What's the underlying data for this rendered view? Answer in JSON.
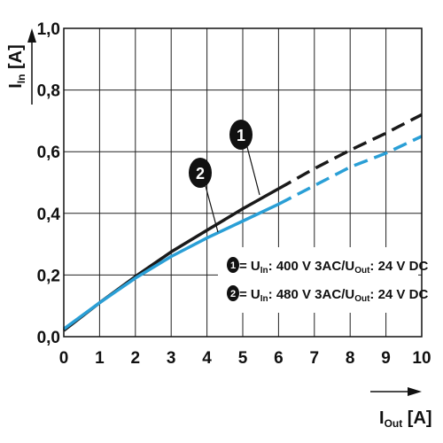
{
  "chart_data": {
    "type": "line",
    "xlabel": {
      "symbol": "I",
      "subscript": "Out",
      "unit": " [A]"
    },
    "ylabel": {
      "symbol": "I",
      "subscript": "In",
      "unit": " [A]"
    },
    "xlim": [
      0,
      10
    ],
    "ylim": [
      0,
      1.0
    ],
    "x_ticks": [
      "0",
      "1",
      "2",
      "3",
      "4",
      "5",
      "6",
      "7",
      "8",
      "9",
      "10"
    ],
    "y_ticks": [
      "0,0",
      "0,2",
      "0,4",
      "0,6",
      "0,8",
      "1,0"
    ],
    "grid": true,
    "solid_until_x": 6,
    "series": [
      {
        "marker": "1",
        "color": "#1a1a1a",
        "legend": {
          "prefix": "= U",
          "sub1": "In",
          "middle": ": 400 V 3AC/U",
          "sub2": "Out",
          "suffix": ": 24 V DC"
        },
        "points": [
          [
            0,
            0.02
          ],
          [
            1,
            0.11
          ],
          [
            2,
            0.195
          ],
          [
            3,
            0.275
          ],
          [
            4,
            0.345
          ],
          [
            5,
            0.415
          ],
          [
            6,
            0.48
          ],
          [
            7,
            0.545
          ],
          [
            8,
            0.605
          ],
          [
            9,
            0.66
          ],
          [
            10,
            0.72
          ]
        ]
      },
      {
        "marker": "2",
        "color": "#2a9fd6",
        "legend": {
          "prefix": "= U",
          "sub1": "In",
          "middle": ": 480 V 3AC/U",
          "sub2": "Out",
          "suffix": ": 24 V DC"
        },
        "points": [
          [
            0,
            0.025
          ],
          [
            1,
            0.11
          ],
          [
            2,
            0.19
          ],
          [
            3,
            0.26
          ],
          [
            4,
            0.32
          ],
          [
            5,
            0.375
          ],
          [
            6,
            0.43
          ],
          [
            7,
            0.49
          ],
          [
            8,
            0.55
          ],
          [
            9,
            0.595
          ],
          [
            10,
            0.65
          ]
        ]
      }
    ]
  }
}
